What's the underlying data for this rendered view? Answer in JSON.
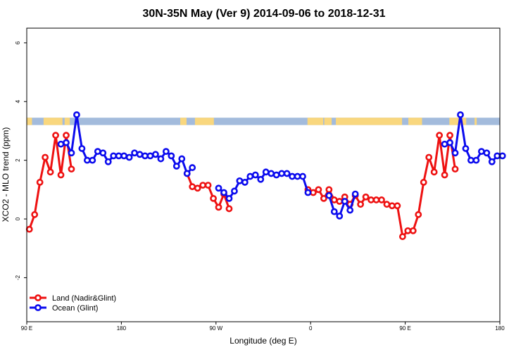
{
  "chart_data": {
    "type": "line",
    "title": "30N-35N May (Ver 9)   2014-09-06 to 2018-12-31",
    "xlabel": "Longitude (deg E)",
    "ylabel": "XCO2 - MLO trend (ppm)",
    "xlim": [
      90,
      540
    ],
    "ylim": [
      -3.5,
      6.5
    ],
    "x_ticks": [
      {
        "value": 90,
        "label": "90 E"
      },
      {
        "value": 180,
        "label": "180"
      },
      {
        "value": 270,
        "label": "90 W"
      },
      {
        "value": 360,
        "label": "0"
      },
      {
        "value": 450,
        "label": "90 E"
      },
      {
        "value": 540,
        "label": "180"
      }
    ],
    "y_ticks": [
      {
        "value": -2,
        "label": "-2"
      },
      {
        "value": 0,
        "label": "0"
      },
      {
        "value": 2,
        "label": "2"
      },
      {
        "value": 4,
        "label": "4"
      },
      {
        "value": 6,
        "label": "6"
      }
    ],
    "grid": false,
    "legend_position": "bottom-left",
    "surface_band": {
      "y_range": [
        3.2,
        3.45
      ],
      "ocean_color": "#a3bbdc",
      "land_color": "#f9d77e",
      "land_ranges": [
        [
          90,
          95
        ],
        [
          106,
          124
        ],
        [
          126,
          131
        ],
        [
          236,
          242
        ],
        [
          250,
          268
        ],
        [
          357,
          372
        ],
        [
          373,
          380
        ],
        [
          384,
          447
        ],
        [
          453,
          466
        ],
        [
          492,
          508
        ],
        [
          516,
          518
        ]
      ]
    },
    "series": [
      {
        "name": "Land (Nadir&Glint)",
        "color": "#ee1111",
        "segments": [
          [
            [
              92.5,
              -0.35
            ],
            [
              97.5,
              0.15
            ],
            [
              102.5,
              1.25
            ],
            [
              107.5,
              2.1
            ],
            [
              112.5,
              1.6
            ],
            [
              117.5,
              2.85
            ],
            [
              122.5,
              1.5
            ],
            [
              127.5,
              2.85
            ],
            [
              132.5,
              1.7
            ]
          ],
          [
            [
              242.5,
              1.55
            ],
            [
              247.5,
              1.1
            ],
            [
              252.5,
              1.05
            ],
            [
              257.5,
              1.15
            ],
            [
              262.5,
              1.15
            ],
            [
              267.5,
              0.7
            ],
            [
              272.5,
              0.4
            ],
            [
              277.5,
              0.85
            ],
            [
              282.5,
              0.35
            ]
          ],
          [
            [
              357.5,
              1.0
            ],
            [
              362.5,
              0.9
            ],
            [
              367.5,
              1.0
            ],
            [
              372.5,
              0.7
            ],
            [
              377.5,
              1.0
            ],
            [
              382.5,
              0.65
            ],
            [
              387.5,
              0.6
            ],
            [
              392.5,
              0.75
            ],
            [
              397.5,
              0.5
            ],
            [
              402.5,
              0.8
            ],
            [
              407.5,
              0.5
            ],
            [
              412.5,
              0.75
            ],
            [
              417.5,
              0.65
            ],
            [
              422.5,
              0.65
            ],
            [
              427.5,
              0.65
            ],
            [
              432.5,
              0.5
            ],
            [
              437.5,
              0.45
            ],
            [
              442.5,
              0.45
            ],
            [
              447.5,
              -0.6
            ],
            [
              452.5,
              -0.4
            ],
            [
              457.5,
              -0.4
            ],
            [
              462.5,
              0.15
            ],
            [
              467.5,
              1.25
            ],
            [
              472.5,
              2.1
            ],
            [
              477.5,
              1.6
            ],
            [
              482.5,
              2.85
            ],
            [
              487.5,
              1.5
            ],
            [
              492.5,
              2.85
            ],
            [
              497.5,
              1.7
            ]
          ]
        ]
      },
      {
        "name": "Ocean (Glint)",
        "color": "#0b0bee",
        "segments": [
          [
            [
              122.5,
              2.55
            ],
            [
              127.5,
              2.6
            ],
            [
              132.5,
              2.25
            ],
            [
              137.5,
              3.55
            ],
            [
              142.5,
              2.4
            ],
            [
              147.5,
              2.0
            ],
            [
              152.5,
              2.0
            ],
            [
              157.5,
              2.3
            ],
            [
              162.5,
              2.25
            ],
            [
              167.5,
              1.95
            ],
            [
              172.5,
              2.15
            ],
            [
              177.5,
              2.15
            ],
            [
              182.5,
              2.15
            ],
            [
              187.5,
              2.1
            ],
            [
              192.5,
              2.25
            ],
            [
              197.5,
              2.2
            ],
            [
              202.5,
              2.15
            ],
            [
              207.5,
              2.15
            ],
            [
              212.5,
              2.2
            ],
            [
              217.5,
              2.05
            ],
            [
              222.5,
              2.3
            ],
            [
              227.5,
              2.15
            ],
            [
              232.5,
              1.8
            ],
            [
              237.5,
              2.05
            ],
            [
              242.5,
              1.55
            ],
            [
              247.5,
              1.75
            ]
          ],
          [
            [
              272.5,
              1.05
            ],
            [
              277.5,
              0.9
            ],
            [
              282.5,
              0.7
            ],
            [
              287.5,
              0.95
            ],
            [
              292.5,
              1.3
            ],
            [
              297.5,
              1.25
            ],
            [
              302.5,
              1.45
            ],
            [
              307.5,
              1.5
            ],
            [
              312.5,
              1.35
            ],
            [
              317.5,
              1.6
            ],
            [
              322.5,
              1.55
            ],
            [
              327.5,
              1.5
            ],
            [
              332.5,
              1.55
            ],
            [
              337.5,
              1.55
            ],
            [
              342.5,
              1.45
            ],
            [
              347.5,
              1.45
            ],
            [
              352.5,
              1.45
            ],
            [
              357.5,
              0.9
            ]
          ],
          [
            [
              377.5,
              0.8
            ],
            [
              382.5,
              0.25
            ],
            [
              387.5,
              0.1
            ],
            [
              392.5,
              0.6
            ],
            [
              397.5,
              0.3
            ],
            [
              402.5,
              0.85
            ]
          ],
          [
            [
              487.5,
              2.55
            ],
            [
              492.5,
              2.6
            ],
            [
              497.5,
              2.25
            ],
            [
              502.5,
              3.55
            ],
            [
              507.5,
              2.4
            ],
            [
              512.5,
              2.0
            ],
            [
              517.5,
              2.0
            ],
            [
              522.5,
              2.3
            ],
            [
              527.5,
              2.25
            ],
            [
              532.5,
              1.95
            ],
            [
              537.5,
              2.15
            ],
            [
              542.5,
              2.15
            ]
          ]
        ]
      }
    ]
  }
}
